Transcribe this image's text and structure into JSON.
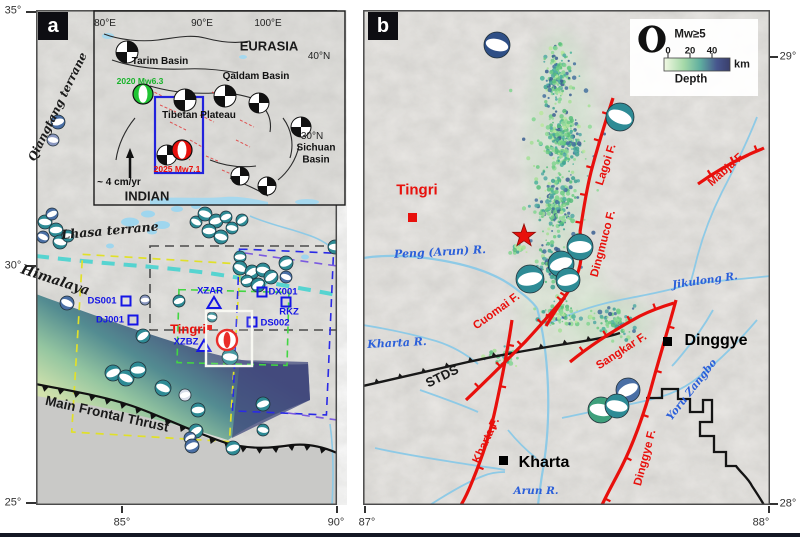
{
  "panels": {
    "a": "a",
    "b": "b"
  },
  "axis": {
    "a_left": [
      "35°",
      "30°",
      "25°"
    ],
    "a_bottom": [
      "85°",
      "90°"
    ],
    "b_bottom": [
      "87°",
      "88°"
    ],
    "b_right": [
      "29°",
      "28°"
    ]
  },
  "inset": {
    "lon": [
      "80°E",
      "90°E",
      "100°E"
    ],
    "lat": [
      "40°N",
      "30°N"
    ],
    "eurasia": "EURASIA",
    "tarim": "Tarim Basin",
    "qaidam": "Qaidam Basin",
    "plateau": "Tibetan Plateau",
    "sichuan": "Sichuan Basin",
    "indian": "INDIAN",
    "rate": "~ 4 cm/yr",
    "eq_2020": "2020 Mw6.3",
    "eq_2025": "2025 Mw7.1"
  },
  "panel_a": {
    "qiangtang": "Qiangtang terrane",
    "lhasa": "Lhasa terrane",
    "himalaya": "Himalaya",
    "mft": "Main Frontal Thrust",
    "tingri": "Tingri",
    "stations": {
      "ds001": "DS001",
      "dj001": "DJ001",
      "xzar": "XZAR",
      "dx001": "DX001",
      "rkz": "RKZ",
      "ds002": "DS002",
      "xzbz": "XZBZ"
    }
  },
  "panel_b": {
    "tingri": "Tingri",
    "dinggye": "Dinggye",
    "kharta": "Kharta",
    "stds": "STDS",
    "faults": {
      "lagoi": "Lagoi F.",
      "mabja": "Mabja F.",
      "dingmuco": "Dingmuco F.",
      "cuomai": "Cuomai F.",
      "sangkar": "Sangkar F.",
      "kharta": "Kharta F.",
      "dinggye": "Dinggye F."
    },
    "rivers": {
      "peng": "Peng (Arun) R.",
      "jikulong": "Jikulong R.",
      "kharta": "Kharta R.",
      "yoru": "Yoru Zangbo",
      "arun": "Arun R."
    },
    "legend": {
      "mag": "Mw≥5",
      "t0": "0",
      "t20": "20",
      "t40": "40",
      "km": "km",
      "depth": "Depth"
    }
  },
  "colors": {
    "fault_red": "#e8100c",
    "station_blue": "#1515e6",
    "river_label_blue": "#2b5fd9",
    "river_blue": "#8ecae6",
    "suture_cyan": "#3ed2cf",
    "depth_scale": [
      "#f2f8e4",
      "#a5d9a8",
      "#5fae9f",
      "#47568e",
      "#3a3f6b"
    ]
  }
}
